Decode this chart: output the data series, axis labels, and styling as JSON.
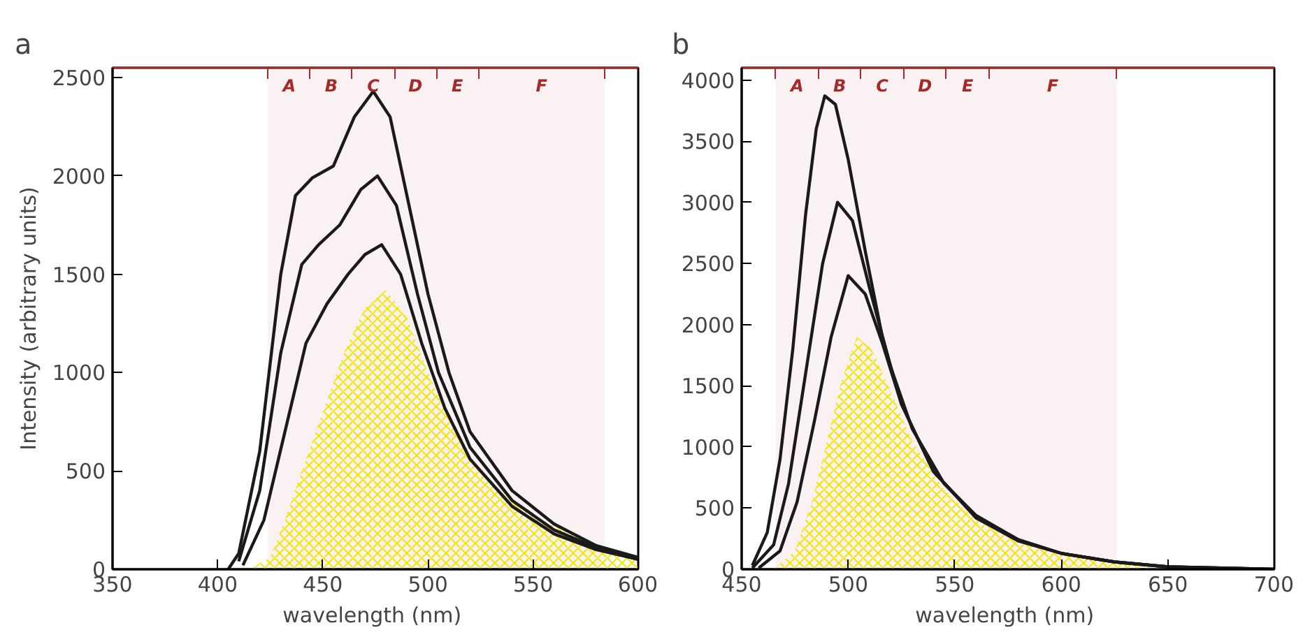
{
  "chart_data": [
    {
      "type": "line",
      "title": "a",
      "xlabel": "wavelength  (nm)",
      "ylabel": "Intensity (arbitrary units)",
      "xlim": [
        350,
        600
      ],
      "ylim": [
        0,
        2550
      ],
      "xticks": [
        350,
        400,
        450,
        500,
        550,
        600
      ],
      "yticks": [
        0,
        500,
        1000,
        1500,
        2000,
        2500
      ],
      "grid": false,
      "bands": [
        {
          "axis": "x",
          "from": 424,
          "to": 444,
          "label": "A",
          "color": "#a52a2a"
        },
        {
          "axis": "x",
          "from": 444,
          "to": 464,
          "label": "B",
          "color": "#a52a2a"
        },
        {
          "axis": "x",
          "from": 464,
          "to": 484,
          "label": "C",
          "color": "#a52a2a"
        },
        {
          "axis": "x",
          "from": 484,
          "to": 504,
          "label": "D",
          "color": "#a52a2a"
        },
        {
          "axis": "x",
          "from": 504,
          "to": 524,
          "label": "E",
          "color": "#a52a2a"
        },
        {
          "axis": "x",
          "from": 524,
          "to": 584,
          "label": "F",
          "color": "#a52a2a"
        }
      ],
      "series": [
        {
          "type": "area",
          "color": "#f2e600",
          "x": [
            415,
            425,
            432,
            440,
            450,
            460,
            470,
            480,
            490,
            500,
            510,
            522,
            540,
            558,
            580,
            600
          ],
          "values": [
            0,
            60,
            250,
            500,
            800,
            1100,
            1330,
            1420,
            1280,
            1000,
            760,
            530,
            340,
            230,
            120,
            60
          ]
        },
        {
          "color": "#1a1a1a",
          "x": [
            412,
            422,
            432,
            442,
            452,
            462,
            470,
            478,
            487,
            497,
            508,
            520,
            540,
            560,
            580,
            600
          ],
          "values": [
            20,
            250,
            700,
            1150,
            1350,
            1500,
            1600,
            1650,
            1500,
            1150,
            820,
            560,
            320,
            180,
            100,
            50
          ]
        },
        {
          "color": "#1a1a1a",
          "x": [
            410,
            420,
            430,
            440,
            448,
            458,
            468,
            476,
            485,
            495,
            505,
            520,
            540,
            560,
            580,
            600
          ],
          "values": [
            40,
            400,
            1100,
            1550,
            1650,
            1750,
            1930,
            2000,
            1850,
            1400,
            1000,
            620,
            350,
            200,
            110,
            50
          ]
        },
        {
          "color": "#1a1a1a",
          "x": [
            405,
            410,
            420,
            430,
            437,
            445,
            455,
            465,
            474,
            482,
            490,
            500,
            510,
            520,
            540,
            560,
            580,
            600
          ],
          "values": [
            0,
            80,
            600,
            1500,
            1900,
            1990,
            2050,
            2300,
            2430,
            2300,
            1900,
            1400,
            1000,
            700,
            400,
            230,
            120,
            60
          ]
        }
      ]
    },
    {
      "type": "line",
      "title": "b",
      "xlabel": "wavelength  (nm)",
      "xlim": [
        450,
        700
      ],
      "ylim": [
        0,
        4100
      ],
      "xticks": [
        450,
        500,
        550,
        600,
        650,
        700
      ],
      "yticks": [
        0,
        500,
        1000,
        1500,
        2000,
        2500,
        3000,
        3500,
        4000
      ],
      "grid": false,
      "bands": [
        {
          "axis": "x",
          "from": 466,
          "to": 486,
          "label": "A",
          "color": "#a52a2a"
        },
        {
          "axis": "x",
          "from": 486,
          "to": 506,
          "label": "B",
          "color": "#a52a2a"
        },
        {
          "axis": "x",
          "from": 506,
          "to": 526,
          "label": "C",
          "color": "#a52a2a"
        },
        {
          "axis": "x",
          "from": 526,
          "to": 546,
          "label": "D",
          "color": "#a52a2a"
        },
        {
          "axis": "x",
          "from": 546,
          "to": 566,
          "label": "E",
          "color": "#a52a2a"
        },
        {
          "axis": "x",
          "from": 566,
          "to": 626,
          "label": "F",
          "color": "#a52a2a"
        }
      ],
      "series": [
        {
          "type": "area",
          "color": "#f2e600",
          "x": [
            465,
            475,
            483,
            490,
            497,
            504,
            511,
            520,
            530,
            545,
            560,
            580,
            600,
            625,
            650,
            700
          ],
          "values": [
            0,
            150,
            550,
            1050,
            1550,
            1900,
            1800,
            1450,
            1050,
            650,
            400,
            220,
            120,
            50,
            20,
            0
          ]
        },
        {
          "color": "#1a1a1a",
          "x": [
            458,
            468,
            476,
            484,
            492,
            500,
            508,
            516,
            525,
            540,
            560,
            580,
            600,
            625,
            650,
            700
          ],
          "values": [
            10,
            150,
            550,
            1200,
            1900,
            2400,
            2250,
            1850,
            1350,
            800,
            430,
            240,
            130,
            60,
            20,
            0
          ]
        },
        {
          "color": "#1a1a1a",
          "x": [
            455,
            465,
            472,
            480,
            488,
            495,
            502,
            510,
            520,
            530,
            545,
            560,
            580,
            600,
            625,
            650,
            700
          ],
          "values": [
            10,
            200,
            700,
            1600,
            2500,
            3000,
            2850,
            2300,
            1650,
            1150,
            700,
            440,
            240,
            130,
            60,
            20,
            0
          ]
        },
        {
          "color": "#1a1a1a",
          "x": [
            455,
            462,
            468,
            474,
            480,
            485,
            489,
            494,
            500,
            508,
            516,
            525,
            540,
            560,
            580,
            600,
            625,
            650,
            700
          ],
          "values": [
            30,
            300,
            900,
            1800,
            2900,
            3600,
            3870,
            3800,
            3350,
            2600,
            1900,
            1350,
            800,
            420,
            230,
            130,
            60,
            20,
            0
          ]
        }
      ]
    }
  ]
}
